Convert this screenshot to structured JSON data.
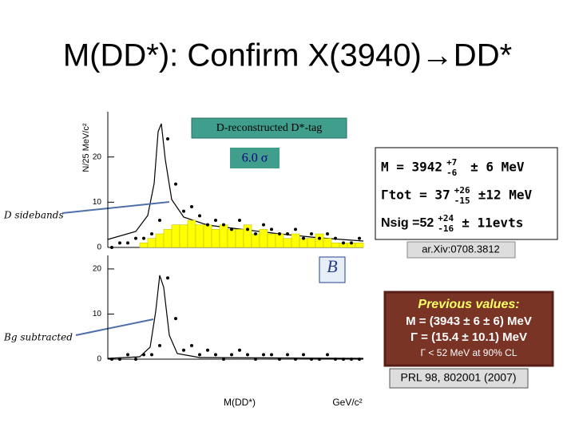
{
  "title": "M(DD*): Confirm X(3940)→DD*",
  "y_axis_label": "N/25 MeV/c²",
  "x_axis_label": "M(DD*)",
  "x_axis_unit": "GeV/c²",
  "tag": "D-reconstructed D*-tag",
  "significance": "6.0 σ",
  "results": [
    {
      "text": "M = 3942",
      "plus": "+7",
      "minus": "-6",
      "syst": "± 6 MeV"
    },
    {
      "text": "Γtot = 37",
      "plus": "+26",
      "minus": "-15",
      "syst": "±12 MeV"
    },
    {
      "text": "Nsig =52",
      "plus": "+24",
      "minus": "-16",
      "syst": "± 11evts"
    }
  ],
  "reference": "ar.Xiv:0708.3812",
  "labels": {
    "sidebands": "D sidebands",
    "subtracted": "Bg subtracted"
  },
  "previous": {
    "heading": "Previous values:",
    "lines": [
      "M = (3943 ± 6 ± 6) MeV",
      "Γ = (15.4 ± 10.1) MeV",
      "Γ < 52 MeV at 90% CL"
    ]
  },
  "prl": "PRL 98, 802001 (2007)",
  "chart_data": [
    {
      "type": "histogram",
      "ylim": [
        0,
        30
      ],
      "yticks": [
        0,
        10,
        20
      ],
      "series": [
        {
          "color": "#ffff00",
          "values": [
            0,
            0,
            0,
            0,
            1,
            2,
            3,
            4,
            5,
            5,
            6,
            5,
            5,
            4,
            5,
            4,
            4,
            5,
            3,
            4,
            3,
            3,
            2,
            3,
            2,
            2,
            3,
            2,
            1,
            1,
            1,
            1
          ]
        },
        {
          "color": "#000000",
          "values": [
            0,
            1,
            1,
            2,
            2,
            3,
            6,
            24,
            14,
            8,
            9,
            7,
            5,
            6,
            5,
            4,
            6,
            4,
            3,
            5,
            4,
            3,
            3,
            4,
            2,
            3,
            2,
            3,
            2,
            1,
            1,
            2
          ]
        }
      ]
    },
    {
      "type": "histogram",
      "ylim": [
        0,
        23
      ],
      "yticks": [
        0,
        10,
        20
      ],
      "series": [
        {
          "color": "#000000",
          "values": [
            0,
            0,
            1,
            0,
            1,
            1,
            3,
            18,
            9,
            2,
            3,
            1,
            2,
            1,
            0,
            1,
            2,
            1,
            0,
            1,
            1,
            0,
            1,
            0,
            1,
            0,
            0,
            1,
            0,
            0,
            0,
            0
          ]
        }
      ]
    }
  ]
}
